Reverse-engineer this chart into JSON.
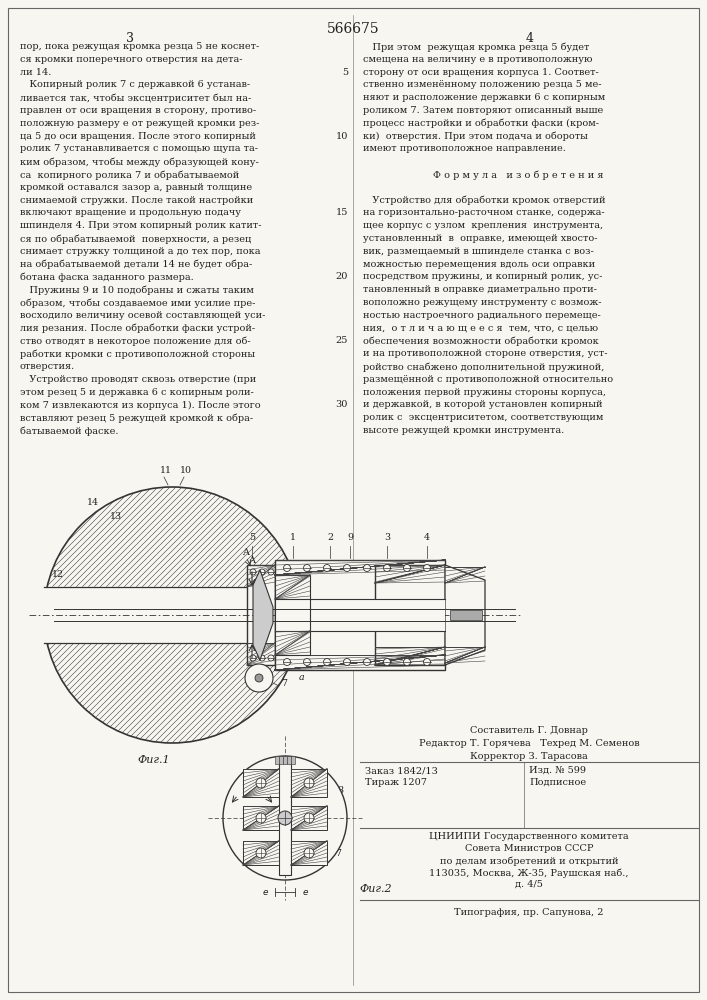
{
  "patent_number": "566675",
  "page_col_left": "3",
  "page_col_right": "4",
  "background_color": "#f8f6f0",
  "text_color": "#222222",
  "col_left_lines": [
    "пор, пока режущая кромка резца 5 не коснет-",
    "ся кромки поперечного отверстия на дета-",
    "ли 14.",
    "   Копирный ролик 7 с державкой 6 устанав-",
    "ливается так, чтобы эксцентриситет был на-",
    "правлен от оси вращения в сторону, противо-",
    "положную размеру e от режущей кромки рез-",
    "ца 5 до оси вращения. После этого копирный",
    "ролик 7 устанавливается с помощью щупа та-",
    "ким образом, чтобы между образующей кону-",
    "са  копирного ролика 7 и обрабатываемой",
    "кромкой оставался зазор a, равный толщине",
    "снимаемой стружки. После такой настройки",
    "включают вращение и продольную подачу",
    "шпинделя 4. При этом копирный ролик катит-",
    "ся по обрабатываемой  поверхности, а резец",
    "снимает стружку толщиной a до тех пор, пока",
    "на обрабатываемой детали 14 не будет обра-",
    "ботана фаска заданного размера.",
    "   Пружины 9 и 10 подобраны и сжаты таким",
    "образом, чтобы создаваемое ими усилие пре-",
    "восходило величину осевой составляющей уси-",
    "лия резания. После обработки фаски устрой-",
    "ство отводят в некоторое положение для об-",
    "работки кромки с противоположной стороны",
    "отверстия.",
    "   Устройство проводят сквозь отверстие (при",
    "этом резец 5 и державка 6 с копирным роли-",
    "ком 7 извлекаются из корпуса 1). После этого",
    "вставляют резец 5 режущей кромкой к обра-",
    "батываемой фаске."
  ],
  "col_right_lines": [
    "   При этом  режущая кромка резца 5 будет",
    "смещена на величину e в противоположную",
    "сторону от оси вращения корпуса 1. Соответ-",
    "ственно изменённому положению резца 5 ме-",
    "няют и расположение державки 6 с копирным",
    "роликом 7. Затем повторяют описанный выше",
    "процесс настройки и обработки фаски (кром-",
    "ки)  отверстия. При этом подача и обороты",
    "имеют противоположное направление.",
    "",
    "Ф о р м у л а   и з о б р е т е н и я",
    "",
    "   Устройство для обработки кромок отверстий",
    "на горизонтально-расточном станке, содержа-",
    "щее корпус с узлом  крепления  инструмента,",
    "установленный  в  оправке, имеющей хвосто-",
    "вик, размещаемый в шпинделе станка с воз-",
    "можностью перемещения вдоль оси оправки",
    "посредством пружины, и копирный ролик, ус-",
    "тановленный в оправке диаметрально проти-",
    "воположно режущему инструменту с возмож-",
    "ностью настроечного радиального перемеще-",
    "ния,  о т л и ч а ю щ е е с я  тем, что, с целью",
    "обеспечения возможности обработки кромок",
    "и на противоположной стороне отверстия, уст-",
    "ройство снабжено дополнительной пружиной,",
    "размещённой с противоположной относительно",
    "положения первой пружины стороны корпуса,",
    "и державкой, в которой установлен копирный",
    "ролик с  эксцентриситетом, соответствующим",
    "высоте режущей кромки инструмента."
  ],
  "line_numbers": {
    "2": "5",
    "7": "10",
    "13": "15",
    "18": "20",
    "23": "25",
    "28": "30"
  },
  "staff_lines": [
    "Составитель Г. Довнар",
    "Редактор Т. Горячева   Техред М. Семенов",
    "Корректор З. Тарасова"
  ],
  "info_left": [
    "Заказ 1842/13",
    "Тираж 1207",
    "ЦНИИПИ Государственного комитета",
    "Совета Министров СССР",
    "по делам изобретений и открытий",
    "113035, Москва, Ж-35, Раушская наб.,",
    "д. 4/5"
  ],
  "info_right": [
    "Изд. № 599",
    "Подписное"
  ],
  "typography": "Типография, пр. Сапунова, 2",
  "fig1_label": "Фиг.1",
  "fig2_label": "Фиг.2"
}
